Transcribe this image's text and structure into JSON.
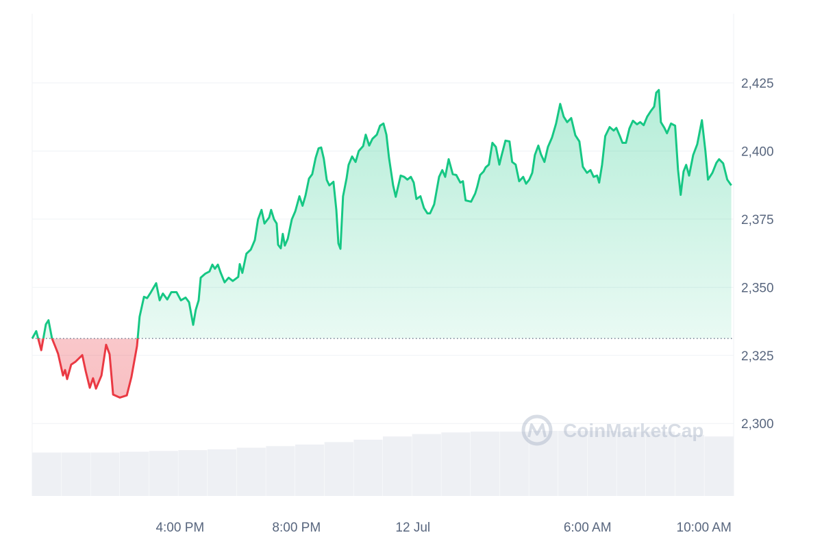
{
  "chart_data": {
    "type": "line",
    "watermark": "CoinMarketCap",
    "baseline": 2331.2,
    "up_color": "#16c784",
    "down_color": "#ea3943",
    "grid": true,
    "xlim": [
      10.92,
      35.02
    ],
    "ylim": [
      2273.4,
      2450.4
    ],
    "yticks": [
      {
        "value": 2300,
        "label": "2,300"
      },
      {
        "value": 2325,
        "label": "2,325"
      },
      {
        "value": 2350,
        "label": "2,350"
      },
      {
        "value": 2375,
        "label": "2,375"
      },
      {
        "value": 2400,
        "label": "2,400"
      },
      {
        "value": 2425,
        "label": "2,425"
      }
    ],
    "xticks": [
      {
        "value": 16,
        "label": "4:00 PM"
      },
      {
        "value": 20,
        "label": "8:00 PM"
      },
      {
        "value": 24,
        "label": "12 Jul"
      },
      {
        "value": 30,
        "label": "6:00 AM"
      },
      {
        "value": 34,
        "label": "10:00 AM"
      }
    ],
    "x": [
      10.92,
      11.06,
      11.23,
      11.39,
      11.48,
      11.6,
      11.7,
      11.81,
      11.98,
      12.05,
      12.12,
      12.26,
      12.4,
      12.64,
      12.76,
      12.9,
      13.01,
      13.11,
      13.3,
      13.46,
      13.58,
      13.7,
      13.93,
      14.17,
      14.33,
      14.52,
      14.61,
      14.76,
      14.87,
      14.99,
      15.18,
      15.3,
      15.41,
      15.56,
      15.7,
      15.88,
      16.03,
      16.19,
      16.31,
      16.45,
      16.54,
      16.64,
      16.71,
      16.87,
      17.01,
      17.11,
      17.2,
      17.3,
      17.39,
      17.53,
      17.67,
      17.81,
      18.0,
      18.05,
      18.14,
      18.28,
      18.43,
      18.57,
      18.68,
      18.8,
      18.9,
      19.06,
      19.13,
      19.23,
      19.32,
      19.37,
      19.46,
      19.53,
      19.6,
      19.7,
      19.84,
      19.96,
      20.1,
      20.21,
      20.31,
      20.43,
      20.54,
      20.66,
      20.76,
      20.85,
      20.94,
      21.04,
      21.13,
      21.27,
      21.37,
      21.44,
      21.51,
      21.6,
      21.72,
      21.79,
      21.91,
      22.03,
      22.14,
      22.29,
      22.38,
      22.5,
      22.61,
      22.76,
      22.87,
      22.99,
      23.09,
      23.18,
      23.32,
      23.41,
      23.58,
      23.7,
      23.81,
      23.93,
      24.03,
      24.12,
      24.26,
      24.38,
      24.5,
      24.59,
      24.73,
      24.9,
      25.01,
      25.11,
      25.23,
      25.37,
      25.49,
      25.63,
      25.72,
      25.81,
      26.0,
      26.14,
      26.21,
      26.31,
      26.43,
      26.5,
      26.61,
      26.73,
      26.85,
      26.97,
      27.04,
      27.18,
      27.32,
      27.41,
      27.53,
      27.65,
      27.79,
      27.89,
      28.0,
      28.1,
      28.19,
      28.31,
      28.4,
      28.52,
      28.64,
      28.78,
      28.92,
      29.06,
      29.18,
      29.3,
      29.44,
      29.58,
      29.72,
      29.84,
      29.98,
      30.1,
      30.21,
      30.33,
      30.4,
      30.5,
      30.61,
      30.76,
      30.9,
      30.99,
      31.11,
      31.2,
      31.32,
      31.44,
      31.56,
      31.7,
      31.81,
      31.93,
      32.05,
      32.17,
      32.29,
      32.36,
      32.45,
      32.52,
      32.64,
      32.73,
      32.87,
      33.01,
      33.11,
      33.2,
      33.3,
      33.39,
      33.49,
      33.63,
      33.77,
      33.93,
      34.05,
      34.14,
      34.29,
      34.43,
      34.52,
      34.66,
      34.8,
      34.94
    ],
    "series": [
      {
        "values": [
          2331.2,
          2333.9,
          2326.9,
          2336.4,
          2337.9,
          2331.2,
          2328.6,
          2325.6,
          2317.6,
          2319.6,
          2316.3,
          2321.6,
          2322.6,
          2325.1,
          2319.1,
          2313.1,
          2316.6,
          2312.8,
          2317.6,
          2328.9,
          2325.4,
          2310.6,
          2309.5,
          2310.3,
          2317.1,
          2328.4,
          2339.2,
          2346.5,
          2346.0,
          2348.0,
          2351.5,
          2345.2,
          2347.7,
          2345.5,
          2348.2,
          2348.2,
          2345.2,
          2346.2,
          2344.5,
          2336.2,
          2341.7,
          2345.2,
          2353.5,
          2355.0,
          2355.8,
          2358.3,
          2356.8,
          2358.3,
          2355.5,
          2351.8,
          2353.5,
          2352.3,
          2353.8,
          2358.5,
          2355.3,
          2362.3,
          2363.8,
          2367.3,
          2374.9,
          2378.4,
          2373.4,
          2375.6,
          2378.4,
          2374.9,
          2373.4,
          2365.6,
          2364.3,
          2369.6,
          2365.3,
          2367.8,
          2374.9,
          2377.9,
          2383.4,
          2379.9,
          2383.7,
          2389.9,
          2391.5,
          2397.5,
          2401.0,
          2401.3,
          2397.2,
          2389.4,
          2387.4,
          2388.7,
          2378.4,
          2366.1,
          2364.1,
          2383.4,
          2389.9,
          2394.9,
          2398.0,
          2396.0,
          2400.0,
          2401.8,
          2406.0,
          2402.0,
          2404.5,
          2406.0,
          2409.3,
          2410.1,
          2406.0,
          2397.5,
          2387.4,
          2383.2,
          2391.0,
          2390.5,
          2389.5,
          2390.5,
          2388.4,
          2382.4,
          2383.4,
          2379.1,
          2377.1,
          2377.1,
          2380.4,
          2390.5,
          2393.0,
          2390.5,
          2397.0,
          2391.5,
          2391.2,
          2388.4,
          2388.9,
          2381.9,
          2381.4,
          2384.4,
          2386.9,
          2391.2,
          2392.5,
          2394.0,
          2395.0,
          2403.0,
          2401.5,
          2395.0,
          2398.0,
          2403.8,
          2403.5,
          2396.0,
          2395.0,
          2388.9,
          2390.5,
          2388.0,
          2389.5,
          2392.0,
          2398.5,
          2402.0,
          2398.8,
          2396.0,
          2401.5,
          2405.0,
          2410.1,
          2417.3,
          2412.6,
          2410.6,
          2412.1,
          2405.8,
          2403.5,
          2394.2,
          2392.0,
          2393.0,
          2390.5,
          2391.0,
          2388.4,
          2394.9,
          2405.5,
          2408.8,
          2407.5,
          2408.5,
          2405.5,
          2403.0,
          2403.0,
          2408.3,
          2411.1,
          2409.8,
          2410.6,
          2409.5,
          2412.6,
          2414.6,
          2416.3,
          2421.4,
          2422.4,
          2410.6,
          2408.5,
          2406.5,
          2410.1,
          2409.3,
          2393.2,
          2383.9,
          2392.5,
          2394.9,
          2391.0,
          2398.5,
          2402.5,
          2411.3,
          2400.0,
          2389.5,
          2392.0,
          2395.7,
          2397.0,
          2395.5,
          2389.5,
          2387.4
        ]
      }
    ],
    "volume": {
      "color": "#eef0f4",
      "ylim": [
        0,
        300
      ],
      "values": [
        27,
        27,
        27,
        27.5,
        28,
        28.5,
        29,
        30,
        31,
        32,
        33.5,
        35,
        37,
        38.5,
        39.5,
        40,
        40,
        40.5,
        40.5,
        40.5,
        40,
        40,
        38,
        37
      ]
    }
  }
}
